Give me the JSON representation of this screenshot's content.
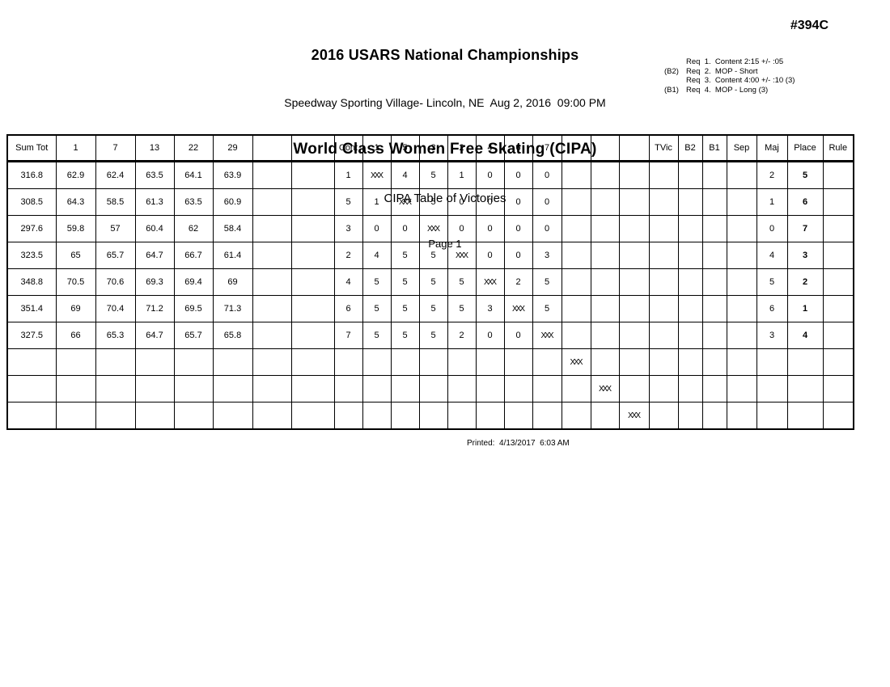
{
  "page": {
    "title": "2016 USARS National Championships",
    "venue_datetime": "Speedway Sporting Village- Lincoln, NE  Aug 2, 2016  09:00 PM",
    "event_title": "World Class Women Free Skating (CIPA)",
    "report_title": "CIPA Table of Victories",
    "page_label": "Page 1",
    "event_number": "#394C",
    "printed_label": "Printed:  4/13/2017  6:03 AM"
  },
  "requirements": [
    {
      "prefix": "",
      "text": "Req  1.  Content 2:15 +/- :05"
    },
    {
      "prefix": "(B2)",
      "text": "Req  2.  MOP - Short"
    },
    {
      "prefix": "",
      "text": "Req  3.  Content 4:00 +/- :10 (3)"
    },
    {
      "prefix": "(B1)",
      "text": "Req  4.  MOP - Long (3)"
    }
  ],
  "victories_table": {
    "columns": [
      "Sum Tot",
      "1",
      "7",
      "13",
      "22",
      "29",
      "",
      "",
      "Cont",
      "1",
      "5",
      "3",
      "2",
      "4",
      "6",
      "7",
      "",
      "",
      "",
      "TVic",
      "B2",
      "B1",
      "Sep",
      "Maj",
      "Place",
      "Rule"
    ],
    "rows": [
      [
        "316.8",
        "62.9",
        "62.4",
        "63.5",
        "64.1",
        "63.9",
        "",
        "",
        "1",
        "XXX",
        "4",
        "5",
        "1",
        "0",
        "0",
        "0",
        "",
        "",
        "",
        "",
        "",
        "",
        "",
        "2",
        "5",
        ""
      ],
      [
        "308.5",
        "64.3",
        "58.5",
        "61.3",
        "63.5",
        "60.9",
        "",
        "",
        "5",
        "1",
        "XXX",
        "5",
        "0",
        "0",
        "0",
        "0",
        "",
        "",
        "",
        "",
        "",
        "",
        "",
        "1",
        "6",
        ""
      ],
      [
        "297.6",
        "59.8",
        "57",
        "60.4",
        "62",
        "58.4",
        "",
        "",
        "3",
        "0",
        "0",
        "XXX",
        "0",
        "0",
        "0",
        "0",
        "",
        "",
        "",
        "",
        "",
        "",
        "",
        "0",
        "7",
        ""
      ],
      [
        "323.5",
        "65",
        "65.7",
        "64.7",
        "66.7",
        "61.4",
        "",
        "",
        "2",
        "4",
        "5",
        "5",
        "XXX",
        "0",
        "0",
        "3",
        "",
        "",
        "",
        "",
        "",
        "",
        "",
        "4",
        "3",
        ""
      ],
      [
        "348.8",
        "70.5",
        "70.6",
        "69.3",
        "69.4",
        "69",
        "",
        "",
        "4",
        "5",
        "5",
        "5",
        "5",
        "XXX",
        "2",
        "5",
        "",
        "",
        "",
        "",
        "",
        "",
        "",
        "5",
        "2",
        ""
      ],
      [
        "351.4",
        "69",
        "70.4",
        "71.2",
        "69.5",
        "71.3",
        "",
        "",
        "6",
        "5",
        "5",
        "5",
        "5",
        "3",
        "XXX",
        "5",
        "",
        "",
        "",
        "",
        "",
        "",
        "",
        "6",
        "1",
        ""
      ],
      [
        "327.5",
        "66",
        "65.3",
        "64.7",
        "65.7",
        "65.8",
        "",
        "",
        "7",
        "5",
        "5",
        "5",
        "2",
        "0",
        "0",
        "XXX",
        "",
        "",
        "",
        "",
        "",
        "",
        "",
        "3",
        "4",
        ""
      ],
      [
        "",
        "",
        "",
        "",
        "",
        "",
        "",
        "",
        "",
        "",
        "",
        "",
        "",
        "",
        "",
        "",
        "XXX",
        "",
        "",
        "",
        "",
        "",
        "",
        "",
        "",
        ""
      ],
      [
        "",
        "",
        "",
        "",
        "",
        "",
        "",
        "",
        "",
        "",
        "",
        "",
        "",
        "",
        "",
        "",
        "",
        "XXX",
        "",
        "",
        "",
        "",
        "",
        "",
        "",
        ""
      ],
      [
        "",
        "",
        "",
        "",
        "",
        "",
        "",
        "",
        "",
        "",
        "",
        "",
        "",
        "",
        "",
        "",
        "",
        "",
        "XXX",
        "",
        "",
        "",
        "",
        "",
        "",
        ""
      ]
    ]
  }
}
